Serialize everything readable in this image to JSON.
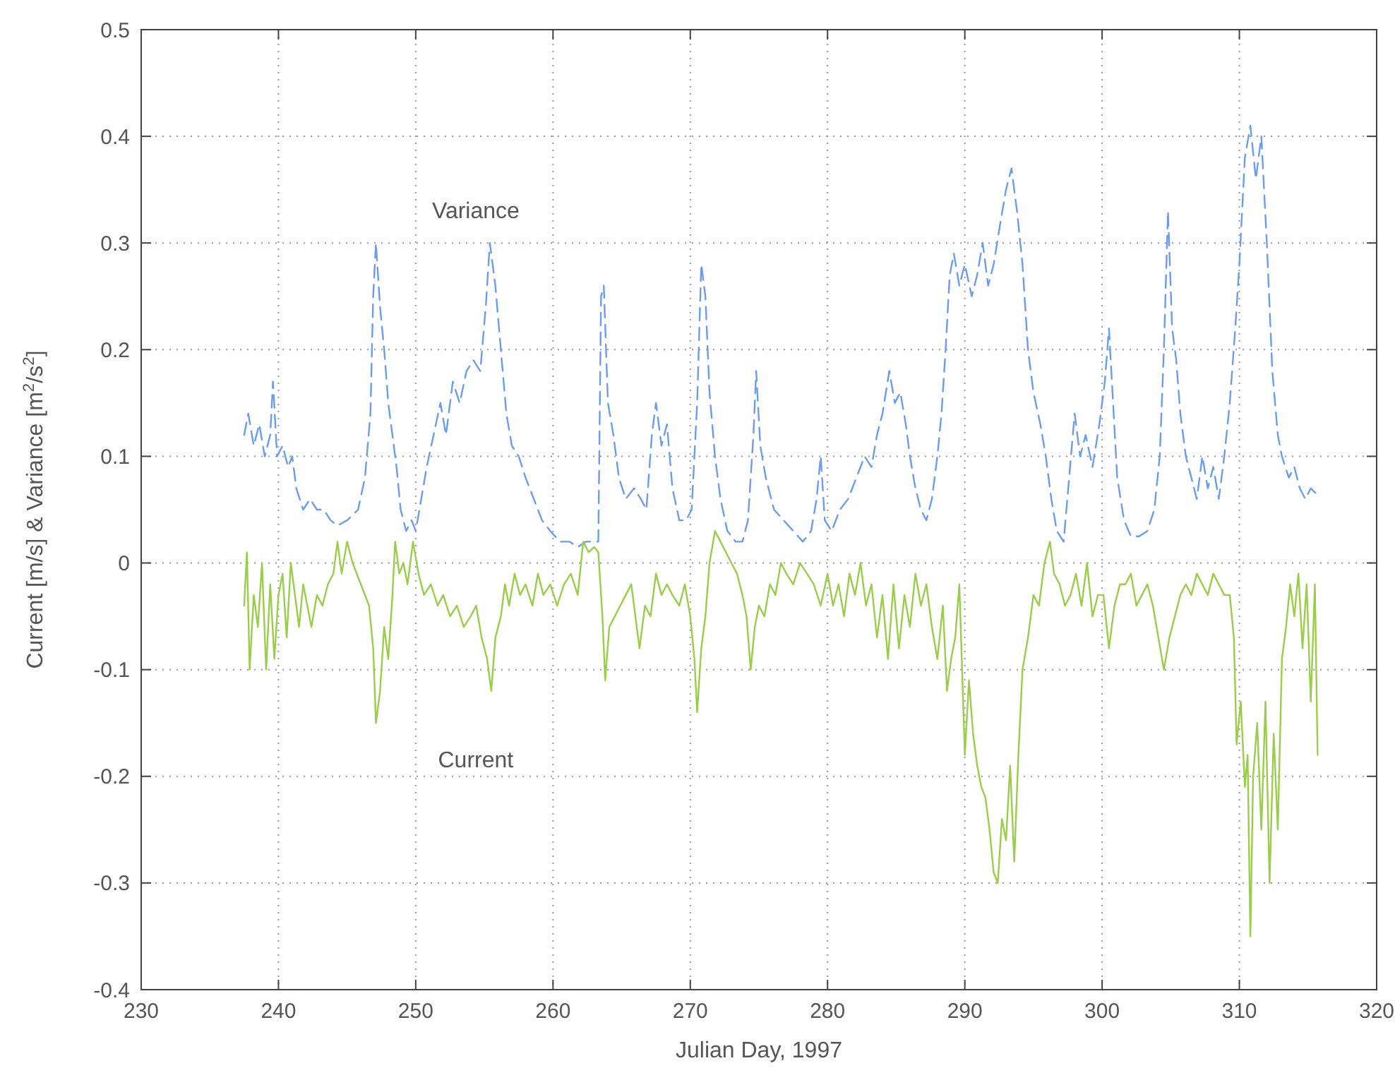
{
  "chart_data": {
    "type": "line",
    "xlabel": "Julian Day, 1997",
    "ylabel": "Current [m/s] & Variance [m$^{2}$/s$^{2}$]",
    "xlim": [
      230,
      320
    ],
    "xticks": [
      230,
      240,
      250,
      260,
      270,
      280,
      290,
      300,
      310,
      320
    ],
    "ylim": [
      -0.4,
      0.5
    ],
    "yticks": [
      -0.4,
      -0.3,
      -0.2,
      -0.1,
      0,
      0.1,
      0.2,
      0.3,
      0.4,
      0.5
    ],
    "grid": true,
    "series": [
      {
        "name": "Variance",
        "color": "#6b9cf0",
        "line_style": "dashed",
        "x": [
          237.5,
          237.8,
          238.2,
          238.6,
          239.0,
          239.4,
          239.6,
          239.9,
          240.3,
          240.7,
          241.0,
          241.3,
          241.8,
          242.3,
          242.8,
          243.3,
          243.8,
          244.3,
          245.0,
          245.8,
          246.3,
          246.7,
          246.9,
          247.1,
          247.4,
          247.7,
          248.0,
          248.3,
          248.6,
          248.9,
          249.3,
          249.7,
          250.0,
          250.4,
          250.8,
          251.3,
          251.8,
          252.2,
          252.7,
          253.2,
          253.7,
          254.2,
          254.7,
          255.1,
          255.4,
          255.8,
          256.2,
          256.6,
          257.0,
          257.5,
          258.0,
          258.6,
          259.2,
          259.8,
          260.5,
          261.2,
          261.8,
          262.4,
          263.0,
          263.3,
          263.5,
          263.7,
          264.0,
          264.4,
          264.8,
          265.3,
          265.9,
          266.4,
          266.8,
          267.2,
          267.5,
          267.9,
          268.3,
          268.7,
          269.2,
          269.7,
          270.1,
          270.5,
          270.8,
          271.1,
          271.4,
          271.8,
          272.2,
          272.7,
          273.3,
          273.8,
          274.2,
          274.6,
          274.8,
          275.1,
          275.5,
          276.1,
          276.8,
          277.5,
          278.2,
          278.8,
          279.2,
          279.5,
          279.8,
          280.3,
          280.9,
          281.5,
          282.1,
          282.7,
          283.2,
          283.6,
          284.0,
          284.5,
          284.9,
          285.3,
          285.7,
          286.0,
          286.4,
          286.8,
          287.2,
          287.6,
          288.0,
          288.3,
          288.6,
          288.9,
          289.2,
          289.6,
          290.0,
          290.5,
          290.9,
          291.3,
          291.7,
          292.1,
          292.6,
          293.0,
          293.4,
          293.8,
          294.2,
          294.6,
          295.0,
          295.5,
          295.9,
          296.3,
          296.7,
          297.2,
          297.6,
          298.0,
          298.4,
          298.8,
          299.3,
          299.8,
          300.2,
          300.5,
          300.8,
          301.1,
          301.6,
          302.1,
          302.7,
          303.3,
          303.8,
          304.2,
          304.5,
          304.8,
          305.1,
          305.4,
          305.7,
          306.1,
          306.5,
          306.9,
          307.3,
          307.7,
          308.1,
          308.5,
          308.9,
          309.3,
          309.7,
          310.0,
          310.4,
          310.8,
          311.2,
          311.6,
          312.0,
          312.4,
          312.8,
          313.1,
          313.6,
          314.0,
          314.4,
          314.8,
          315.2,
          315.6
        ],
        "values": [
          0.12,
          0.14,
          0.11,
          0.13,
          0.1,
          0.12,
          0.17,
          0.1,
          0.11,
          0.09,
          0.1,
          0.07,
          0.05,
          0.06,
          0.05,
          0.05,
          0.04,
          0.035,
          0.04,
          0.05,
          0.08,
          0.14,
          0.25,
          0.3,
          0.24,
          0.2,
          0.15,
          0.12,
          0.09,
          0.05,
          0.03,
          0.04,
          0.03,
          0.06,
          0.09,
          0.12,
          0.15,
          0.12,
          0.17,
          0.15,
          0.18,
          0.19,
          0.18,
          0.24,
          0.3,
          0.26,
          0.2,
          0.14,
          0.11,
          0.1,
          0.08,
          0.06,
          0.04,
          0.03,
          0.02,
          0.02,
          0.015,
          0.02,
          0.02,
          0.02,
          0.25,
          0.26,
          0.15,
          0.12,
          0.08,
          0.06,
          0.07,
          0.06,
          0.05,
          0.12,
          0.15,
          0.11,
          0.13,
          0.07,
          0.04,
          0.04,
          0.05,
          0.15,
          0.28,
          0.25,
          0.16,
          0.1,
          0.06,
          0.03,
          0.02,
          0.02,
          0.04,
          0.12,
          0.18,
          0.11,
          0.08,
          0.05,
          0.04,
          0.03,
          0.02,
          0.03,
          0.06,
          0.1,
          0.04,
          0.03,
          0.05,
          0.06,
          0.08,
          0.1,
          0.09,
          0.12,
          0.14,
          0.18,
          0.15,
          0.16,
          0.13,
          0.1,
          0.07,
          0.05,
          0.04,
          0.06,
          0.1,
          0.14,
          0.2,
          0.27,
          0.29,
          0.26,
          0.28,
          0.25,
          0.27,
          0.3,
          0.26,
          0.28,
          0.32,
          0.35,
          0.37,
          0.33,
          0.28,
          0.2,
          0.16,
          0.13,
          0.1,
          0.06,
          0.03,
          0.02,
          0.08,
          0.14,
          0.1,
          0.12,
          0.09,
          0.13,
          0.17,
          0.22,
          0.15,
          0.08,
          0.04,
          0.025,
          0.025,
          0.03,
          0.05,
          0.1,
          0.2,
          0.33,
          0.22,
          0.19,
          0.14,
          0.1,
          0.08,
          0.06,
          0.1,
          0.07,
          0.09,
          0.06,
          0.1,
          0.15,
          0.22,
          0.28,
          0.38,
          0.41,
          0.36,
          0.4,
          0.3,
          0.18,
          0.12,
          0.1,
          0.08,
          0.09,
          0.07,
          0.06,
          0.07,
          0.065
        ]
      },
      {
        "name": "Current",
        "color": "#9acd4a",
        "line_style": "solid",
        "x": [
          237.5,
          237.7,
          237.9,
          238.2,
          238.5,
          238.8,
          239.1,
          239.4,
          239.7,
          240.0,
          240.3,
          240.6,
          240.9,
          241.2,
          241.5,
          241.8,
          242.1,
          242.4,
          242.8,
          243.2,
          243.6,
          244.0,
          244.3,
          244.6,
          245.0,
          245.4,
          246.0,
          246.6,
          246.9,
          247.1,
          247.4,
          247.7,
          248.0,
          248.3,
          248.5,
          248.8,
          249.1,
          249.4,
          249.8,
          250.2,
          250.6,
          251.1,
          251.6,
          252.0,
          252.5,
          253.0,
          253.5,
          254.0,
          254.4,
          254.8,
          255.2,
          255.5,
          255.8,
          256.2,
          256.5,
          256.8,
          257.2,
          257.6,
          258.0,
          258.5,
          258.9,
          259.3,
          259.8,
          260.3,
          260.8,
          261.3,
          261.8,
          262.2,
          262.6,
          263.0,
          263.3,
          263.6,
          263.8,
          264.1,
          264.5,
          264.9,
          265.3,
          265.7,
          266.0,
          266.3,
          266.7,
          267.1,
          267.5,
          267.9,
          268.3,
          268.7,
          269.2,
          269.6,
          270.0,
          270.3,
          270.5,
          270.8,
          271.1,
          271.4,
          271.8,
          272.2,
          272.6,
          273.0,
          273.4,
          273.8,
          274.1,
          274.4,
          274.7,
          275.0,
          275.4,
          275.8,
          276.2,
          276.6,
          277.0,
          277.5,
          278.0,
          278.5,
          279.0,
          279.5,
          280.0,
          280.4,
          280.8,
          281.2,
          281.6,
          282.0,
          282.4,
          282.8,
          283.2,
          283.6,
          284.0,
          284.4,
          284.8,
          285.2,
          285.6,
          286.0,
          286.4,
          286.8,
          287.2,
          287.6,
          288.0,
          288.4,
          288.7,
          289.0,
          289.3,
          289.6,
          289.8,
          290.0,
          290.3,
          290.6,
          290.9,
          291.2,
          291.5,
          291.8,
          292.1,
          292.4,
          292.7,
          293.0,
          293.3,
          293.6,
          293.9,
          294.2,
          294.6,
          295.0,
          295.4,
          295.8,
          296.2,
          296.5,
          296.9,
          297.3,
          297.7,
          298.1,
          298.5,
          298.9,
          299.3,
          299.7,
          300.1,
          300.5,
          300.9,
          301.3,
          301.7,
          302.1,
          302.5,
          302.9,
          303.3,
          303.7,
          304.1,
          304.5,
          304.9,
          305.3,
          305.7,
          306.1,
          306.5,
          306.9,
          307.3,
          307.7,
          308.1,
          308.5,
          308.9,
          309.3,
          309.6,
          309.8,
          310.1,
          310.4,
          310.6,
          310.8,
          311.0,
          311.3,
          311.6,
          311.9,
          312.2,
          312.5,
          312.8,
          313.1,
          313.4,
          313.7,
          314.0,
          314.3,
          314.6,
          314.9,
          315.2,
          315.5,
          315.7
        ],
        "values": [
          -0.04,
          0.01,
          -0.1,
          -0.03,
          -0.06,
          0.0,
          -0.1,
          -0.02,
          -0.09,
          -0.03,
          -0.01,
          -0.07,
          0.0,
          -0.03,
          -0.06,
          -0.02,
          -0.04,
          -0.06,
          -0.03,
          -0.04,
          -0.02,
          -0.01,
          0.02,
          -0.01,
          0.02,
          0.0,
          -0.02,
          -0.04,
          -0.08,
          -0.15,
          -0.12,
          -0.06,
          -0.09,
          -0.03,
          0.02,
          -0.01,
          0.0,
          -0.02,
          0.02,
          -0.01,
          -0.03,
          -0.02,
          -0.04,
          -0.03,
          -0.05,
          -0.04,
          -0.06,
          -0.05,
          -0.04,
          -0.07,
          -0.09,
          -0.12,
          -0.07,
          -0.05,
          -0.02,
          -0.04,
          -0.01,
          -0.03,
          -0.02,
          -0.04,
          -0.01,
          -0.03,
          -0.02,
          -0.04,
          -0.02,
          -0.01,
          -0.03,
          0.02,
          0.01,
          0.015,
          0.01,
          -0.05,
          -0.11,
          -0.06,
          -0.05,
          -0.04,
          -0.03,
          -0.02,
          -0.05,
          -0.08,
          -0.04,
          -0.05,
          -0.01,
          -0.03,
          -0.02,
          -0.03,
          -0.04,
          -0.02,
          -0.05,
          -0.09,
          -0.14,
          -0.08,
          -0.05,
          0.0,
          0.03,
          0.02,
          0.01,
          0.0,
          -0.01,
          -0.03,
          -0.05,
          -0.1,
          -0.06,
          -0.04,
          -0.05,
          -0.02,
          -0.03,
          0.0,
          -0.01,
          -0.02,
          0.0,
          -0.01,
          -0.02,
          -0.04,
          -0.01,
          -0.04,
          -0.02,
          -0.05,
          -0.01,
          -0.03,
          0.0,
          -0.04,
          -0.02,
          -0.07,
          -0.03,
          -0.09,
          -0.02,
          -0.08,
          -0.03,
          -0.06,
          -0.01,
          -0.04,
          -0.02,
          -0.06,
          -0.09,
          -0.04,
          -0.12,
          -0.09,
          -0.07,
          -0.02,
          -0.1,
          -0.18,
          -0.11,
          -0.16,
          -0.19,
          -0.21,
          -0.22,
          -0.25,
          -0.29,
          -0.3,
          -0.24,
          -0.26,
          -0.19,
          -0.28,
          -0.18,
          -0.1,
          -0.07,
          -0.03,
          -0.04,
          0.0,
          0.02,
          -0.01,
          -0.02,
          -0.04,
          -0.03,
          -0.01,
          -0.04,
          0.0,
          -0.05,
          -0.03,
          -0.03,
          -0.08,
          -0.04,
          -0.02,
          -0.02,
          -0.01,
          -0.04,
          -0.03,
          -0.02,
          -0.04,
          -0.07,
          -0.1,
          -0.07,
          -0.05,
          -0.03,
          -0.02,
          -0.03,
          -0.01,
          -0.02,
          -0.03,
          -0.01,
          -0.02,
          -0.03,
          -0.03,
          -0.07,
          -0.17,
          -0.13,
          -0.21,
          -0.18,
          -0.35,
          -0.2,
          -0.15,
          -0.25,
          -0.13,
          -0.3,
          -0.16,
          -0.25,
          -0.09,
          -0.06,
          -0.02,
          -0.05,
          -0.01,
          -0.08,
          -0.02,
          -0.13,
          -0.02,
          -0.18
        ]
      }
    ]
  }
}
